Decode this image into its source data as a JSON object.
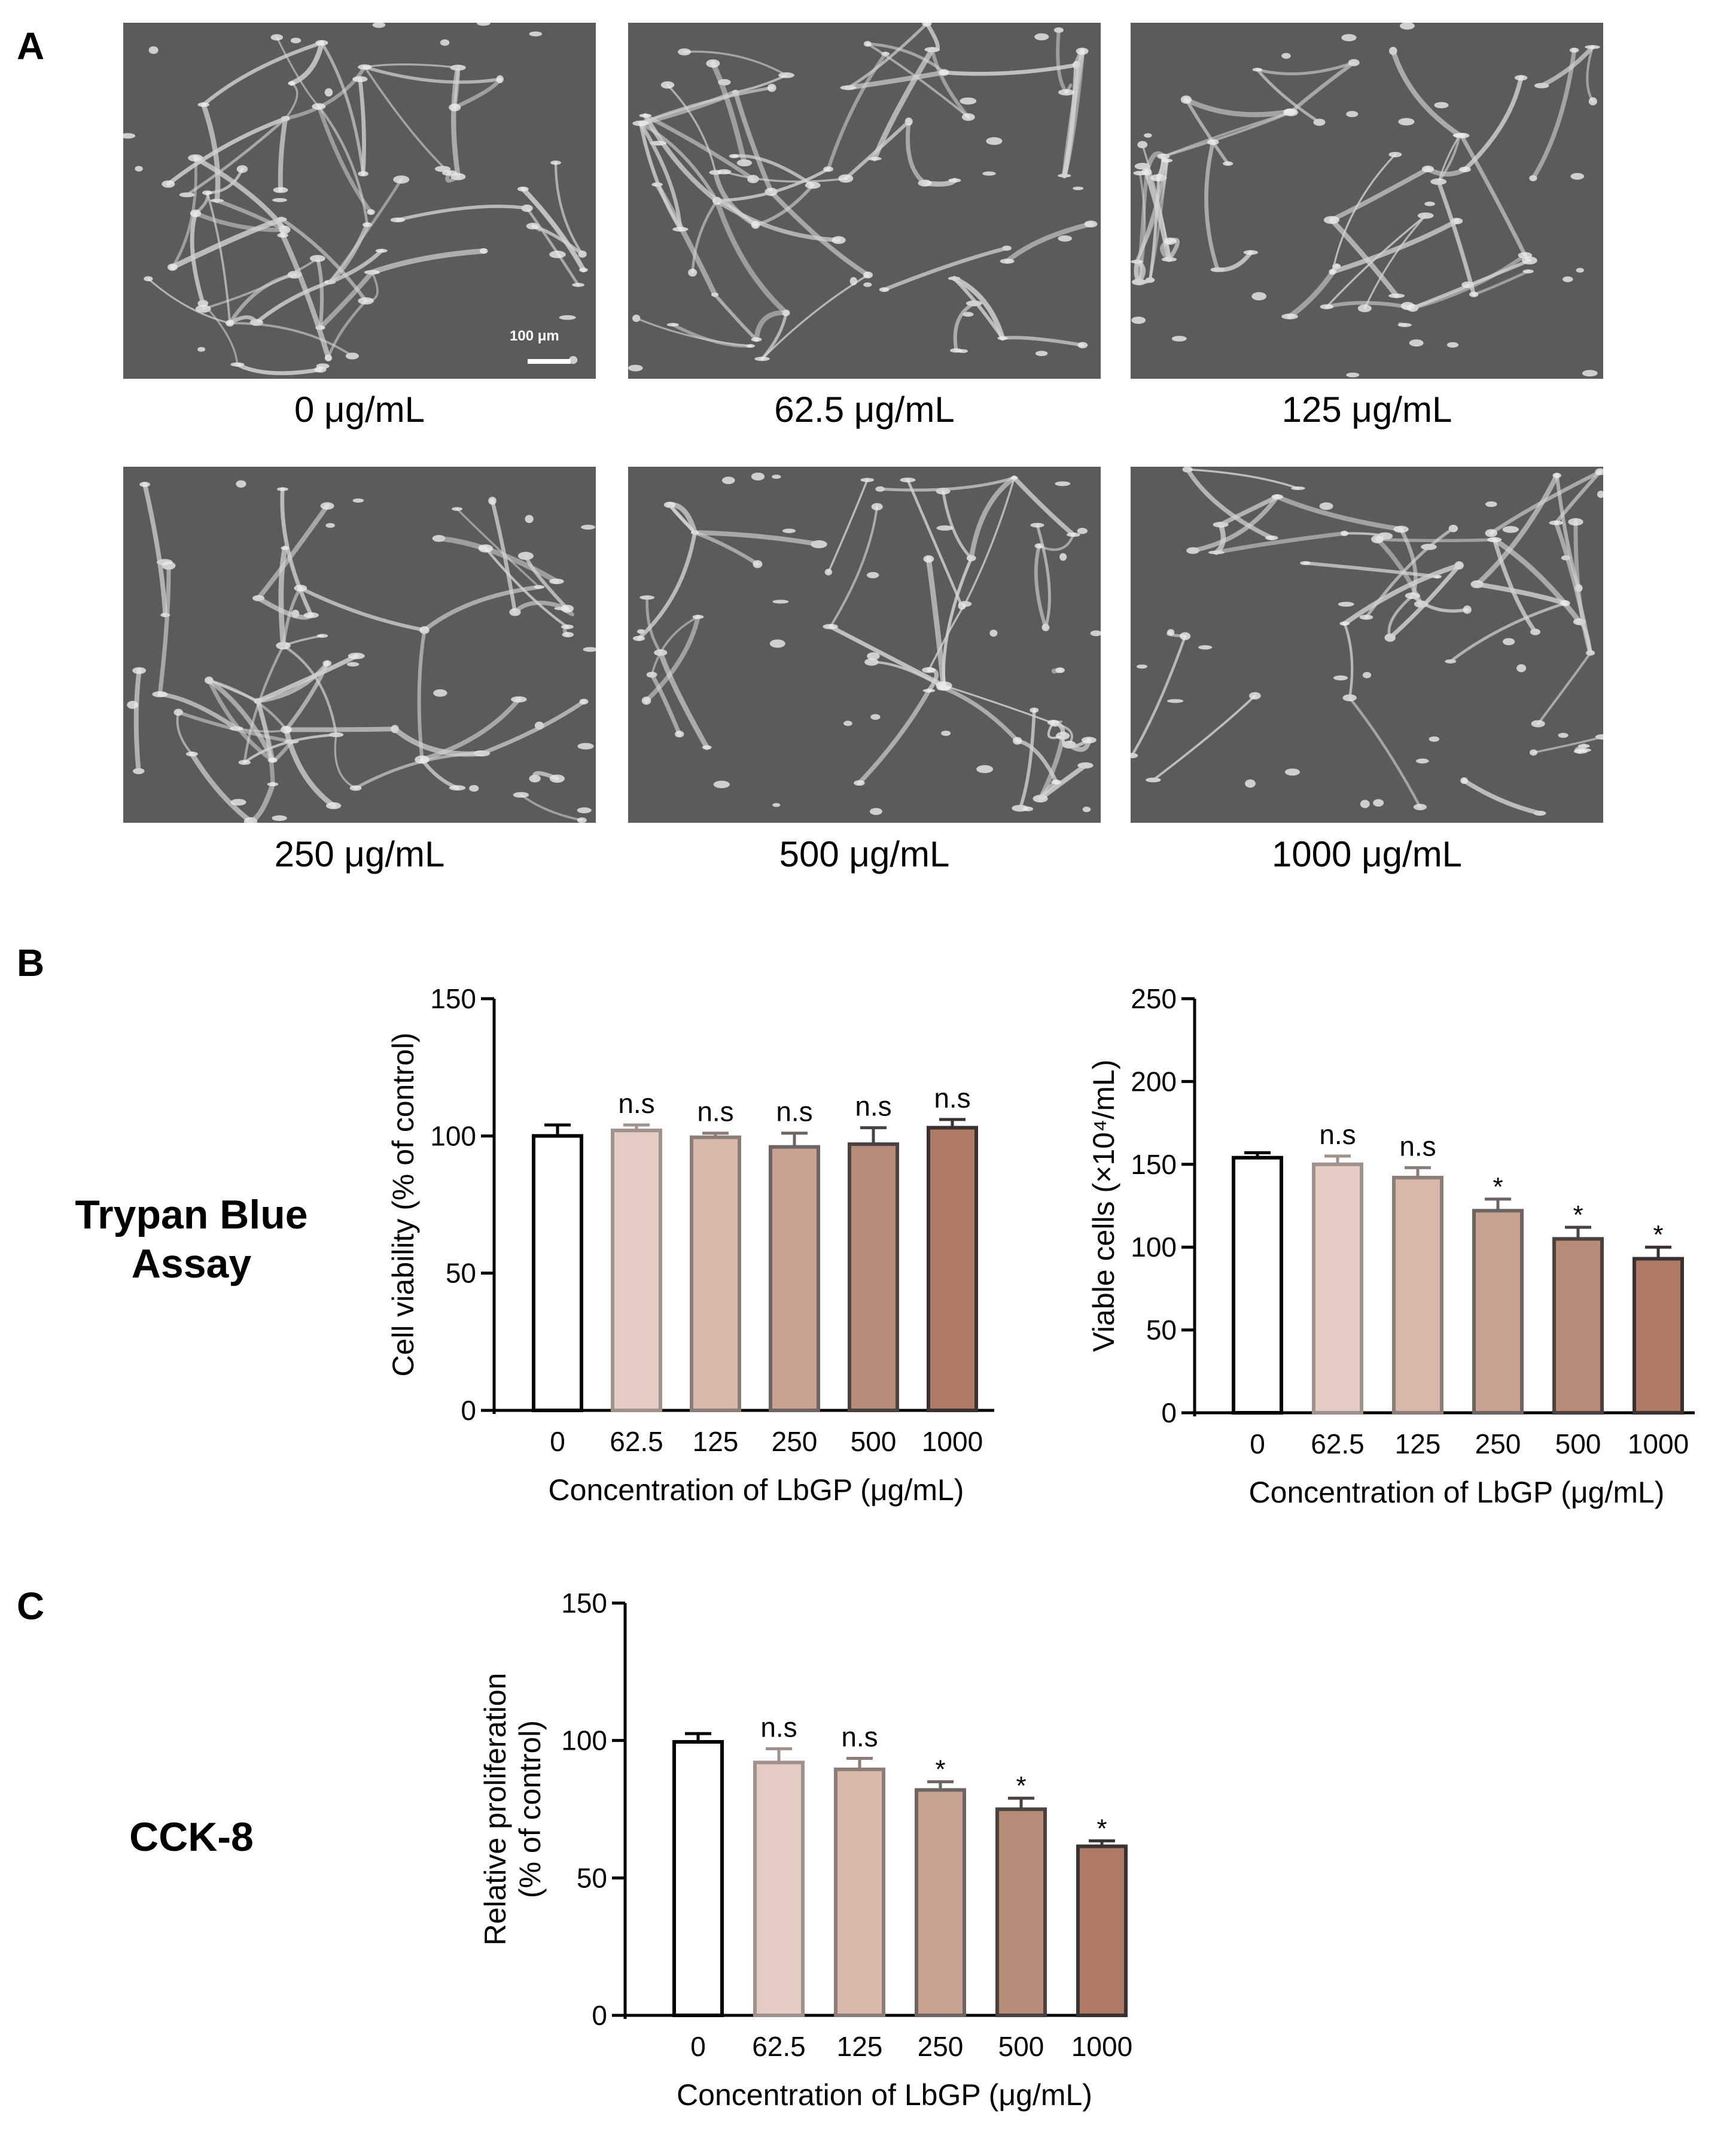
{
  "panels": {
    "a": {
      "letter": "A",
      "scalebar": "100 μm",
      "images": [
        {
          "label": "0 μg/mL"
        },
        {
          "label": "62.5 μg/mL"
        },
        {
          "label": "125 μg/mL"
        },
        {
          "label": "250 μg/mL"
        },
        {
          "label": "500 μg/mL"
        },
        {
          "label": "1000 μg/mL"
        }
      ]
    },
    "b": {
      "letter": "B",
      "row_label_line1": "Trypan Blue",
      "row_label_line2": "Assay"
    },
    "c": {
      "letter": "C",
      "row_label": "CCK-8"
    }
  },
  "colors": {
    "bar_fills": [
      "#ffffff",
      "#e3ccc3",
      "#d7b8ab",
      "#c8a394",
      "#b88b78",
      "#ad7b65"
    ],
    "bar_strokes": [
      "#000000",
      "#a0918c",
      "#8c7d78",
      "#6e6461",
      "#4a4240",
      "#3a3230"
    ],
    "micrograph_bg": "#5b5b5b",
    "cell": "#d2d2d2"
  },
  "chart_data": [
    {
      "type": "bar",
      "categories": [
        "0",
        "62.5",
        "125",
        "250",
        "500",
        "1000"
      ],
      "values": [
        100,
        102,
        99.5,
        96,
        97,
        103
      ],
      "errors": [
        4,
        2,
        1.5,
        5,
        6,
        3
      ],
      "annotations": [
        "",
        "n.s",
        "n.s",
        "n.s",
        "n.s",
        "n.s"
      ],
      "xlabel": "Concentration of LbGP (μg/mL)",
      "ylabel": "Cell viability (% of control)",
      "ylim": [
        0,
        150
      ],
      "yticks": [
        "0",
        "50",
        "100",
        "150"
      ],
      "grid": false
    },
    {
      "type": "bar",
      "categories": [
        "0",
        "62.5",
        "125",
        "250",
        "500",
        "1000"
      ],
      "values": [
        154,
        150,
        142,
        122,
        105,
        93
      ],
      "errors": [
        3,
        5,
        6,
        7,
        7,
        7
      ],
      "annotations": [
        "",
        "n.s",
        "n.s",
        "*",
        "*",
        "*"
      ],
      "xlabel": "Concentration of LbGP (μg/mL)",
      "ylabel": "Viable cells (×10⁴/mL)",
      "ylim": [
        0,
        250
      ],
      "yticks": [
        "0",
        "50",
        "100",
        "150",
        "200",
        "250"
      ],
      "grid": false
    },
    {
      "type": "bar",
      "categories": [
        "0",
        "62.5",
        "125",
        "250",
        "500",
        "1000"
      ],
      "values": [
        99.5,
        92,
        89.5,
        82,
        75,
        61.5
      ],
      "errors": [
        3,
        5,
        4,
        3,
        4,
        2
      ],
      "annotations": [
        "",
        "n.s",
        "n.s",
        "*",
        "*",
        "*"
      ],
      "xlabel": "Concentration of LbGP (μg/mL)",
      "ylabel_lines": [
        "Relative proliferation",
        "(% of control)"
      ],
      "ylim": [
        0,
        150
      ],
      "yticks": [
        "0",
        "50",
        "100",
        "150"
      ],
      "grid": false
    }
  ]
}
